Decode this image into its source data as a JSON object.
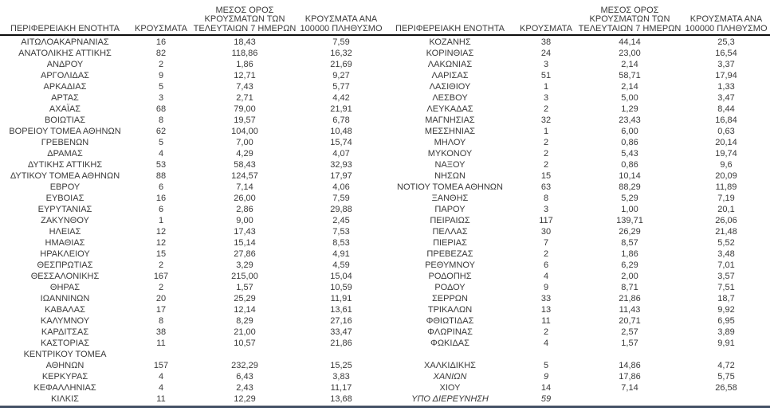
{
  "table": {
    "headers": {
      "region": "ΠΕΡΙΦΕΡΕΙΑΚΗ ΕΝΟΤΗΤΑ",
      "cases": "ΚΡΟΥΣΜΑΤΑ",
      "avg7_lines": [
        "ΜΕΣΟΣ ΟΡΟΣ",
        "ΚΡΟΥΣΜΑΤΩΝ ΤΩΝ",
        "ΤΕΛΕΥΤΑΙΩΝ 7 ΗΜΕΡΩΝ"
      ],
      "per100k_lines": [
        "ΚΡΟΥΣΜΑΤΑ ΑΝΑ",
        "100000 ΠΛΗΘΥΣΜΟ"
      ]
    },
    "left_rows": [
      {
        "region": "ΑΙΤΩΛΟΑΚΑΡΝΑΝΙΑΣ",
        "cases": "16",
        "avg7": "18,43",
        "per100k": "7,59"
      },
      {
        "region": "ΑΝΑΤΟΛΙΚΗΣ ΑΤΤΙΚΗΣ",
        "cases": "82",
        "avg7": "118,86",
        "per100k": "16,32"
      },
      {
        "region": "ΑΝΔΡΟΥ",
        "cases": "2",
        "avg7": "1,86",
        "per100k": "21,69"
      },
      {
        "region": "ΑΡΓΟΛΙΔΑΣ",
        "cases": "9",
        "avg7": "12,71",
        "per100k": "9,27"
      },
      {
        "region": "ΑΡΚΑΔΙΑΣ",
        "cases": "5",
        "avg7": "7,43",
        "per100k": "5,77"
      },
      {
        "region": "ΑΡΤΑΣ",
        "cases": "3",
        "avg7": "2,71",
        "per100k": "4,42"
      },
      {
        "region": "ΑΧΑΪΑΣ",
        "cases": "68",
        "avg7": "79,00",
        "per100k": "21,91"
      },
      {
        "region": "ΒΟΙΩΤΙΑΣ",
        "cases": "8",
        "avg7": "19,57",
        "per100k": "6,78"
      },
      {
        "region": "ΒΟΡΕΙΟΥ ΤΟΜΕΑ ΑΘΗΝΩΝ",
        "cases": "62",
        "avg7": "104,00",
        "per100k": "10,48"
      },
      {
        "region": "ΓΡΕΒΕΝΩΝ",
        "cases": "5",
        "avg7": "7,00",
        "per100k": "15,74"
      },
      {
        "region": "ΔΡΑΜΑΣ",
        "cases": "4",
        "avg7": "4,29",
        "per100k": "4,07"
      },
      {
        "region": "ΔΥΤΙΚΗΣ ΑΤΤΙΚΗΣ",
        "cases": "53",
        "avg7": "58,43",
        "per100k": "32,93"
      },
      {
        "region": "ΔΥΤΙΚΟΥ ΤΟΜΕΑ ΑΘΗΝΩΝ",
        "cases": "88",
        "avg7": "124,57",
        "per100k": "17,97"
      },
      {
        "region": "ΕΒΡΟΥ",
        "cases": "6",
        "avg7": "7,14",
        "per100k": "4,06"
      },
      {
        "region": "ΕΥΒΟΙΑΣ",
        "cases": "16",
        "avg7": "26,00",
        "per100k": "7,59"
      },
      {
        "region": "ΕΥΡΥΤΑΝΙΑΣ",
        "cases": "6",
        "avg7": "2,86",
        "per100k": "29,88"
      },
      {
        "region": "ΖΑΚΥΝΘΟΥ",
        "cases": "1",
        "avg7": "9,00",
        "per100k": "2,45"
      },
      {
        "region": "ΗΛΕΙΑΣ",
        "cases": "12",
        "avg7": "17,43",
        "per100k": "7,53"
      },
      {
        "region": "ΗΜΑΘΙΑΣ",
        "cases": "12",
        "avg7": "15,14",
        "per100k": "8,53"
      },
      {
        "region": "ΗΡΑΚΛΕΙΟΥ",
        "cases": "15",
        "avg7": "27,86",
        "per100k": "4,91"
      },
      {
        "region": "ΘΕΣΠΡΩΤΙΑΣ",
        "cases": "2",
        "avg7": "3,29",
        "per100k": "4,59"
      },
      {
        "region": "ΘΕΣΣΑΛΟΝΙΚΗΣ",
        "cases": "167",
        "avg7": "215,00",
        "per100k": "15,04"
      },
      {
        "region": "ΘΗΡΑΣ",
        "cases": "2",
        "avg7": "1,57",
        "per100k": "10,59"
      },
      {
        "region": "ΙΩΑΝΝΙΝΩΝ",
        "cases": "20",
        "avg7": "25,29",
        "per100k": "11,91"
      },
      {
        "region": "ΚΑΒΑΛΑΣ",
        "cases": "17",
        "avg7": "12,14",
        "per100k": "13,61"
      },
      {
        "region": "ΚΑΛΥΜΝΟΥ",
        "cases": "8",
        "avg7": "8,29",
        "per100k": "27,16"
      },
      {
        "region": "ΚΑΡΔΙΤΣΑΣ",
        "cases": "38",
        "avg7": "21,00",
        "per100k": "33,47"
      },
      {
        "region": "ΚΑΣΤΟΡΙΑΣ",
        "cases": "11",
        "avg7": "10,57",
        "per100k": "21,86"
      },
      {
        "region": "ΚΕΝΤΡΙΚΟΥ ΤΟΜΕΑ",
        "cases": "",
        "avg7": "",
        "per100k": ""
      },
      {
        "region": "ΑΘΗΝΩΝ",
        "cases": "157",
        "avg7": "232,29",
        "per100k": "15,25"
      },
      {
        "region": "ΚΕΡΚΥΡΑΣ",
        "cases": "4",
        "avg7": "6,43",
        "per100k": "3,83"
      },
      {
        "region": "ΚΕΦΑΛΛΗΝΙΑΣ",
        "cases": "4",
        "avg7": "2,43",
        "per100k": "11,17"
      },
      {
        "region": "ΚΙΛΚΙΣ",
        "cases": "11",
        "avg7": "12,29",
        "per100k": "13,68"
      }
    ],
    "right_rows": [
      {
        "region": "ΚΟΖΑΝΗΣ",
        "cases": "38",
        "avg7": "44,14",
        "per100k": "25,3"
      },
      {
        "region": "ΚΟΡΙΝΘΙΑΣ",
        "cases": "24",
        "avg7": "23,00",
        "per100k": "16,54"
      },
      {
        "region": "ΛΑΚΩΝΙΑΣ",
        "cases": "3",
        "avg7": "2,14",
        "per100k": "3,37"
      },
      {
        "region": "ΛΑΡΙΣΑΣ",
        "cases": "51",
        "avg7": "58,71",
        "per100k": "17,94"
      },
      {
        "region": "ΛΑΣΙΘΙΟΥ",
        "cases": "1",
        "avg7": "2,14",
        "per100k": "1,33"
      },
      {
        "region": "ΛΕΣΒΟΥ",
        "cases": "3",
        "avg7": "5,00",
        "per100k": "3,47"
      },
      {
        "region": "ΛΕΥΚΑΔΑΣ",
        "cases": "2",
        "avg7": "1,29",
        "per100k": "8,44"
      },
      {
        "region": "ΜΑΓΝΗΣΙΑΣ",
        "cases": "32",
        "avg7": "23,43",
        "per100k": "16,84"
      },
      {
        "region": "ΜΕΣΣΗΝΙΑΣ",
        "cases": "1",
        "avg7": "6,00",
        "per100k": "0,63"
      },
      {
        "region": "ΜΗΛΟΥ",
        "cases": "2",
        "avg7": "0,86",
        "per100k": "20,14"
      },
      {
        "region": "ΜΥΚΟΝΟΥ",
        "cases": "2",
        "avg7": "5,43",
        "per100k": "19,74"
      },
      {
        "region": "ΝΑΞΟΥ",
        "cases": "2",
        "avg7": "0,86",
        "per100k": "9,6"
      },
      {
        "region": "ΝΗΣΩΝ",
        "cases": "15",
        "avg7": "10,14",
        "per100k": "20,09"
      },
      {
        "region": "ΝΟΤΙΟΥ ΤΟΜΕΑ ΑΘΗΝΩΝ",
        "cases": "63",
        "avg7": "88,29",
        "per100k": "11,89"
      },
      {
        "region": "ΞΑΝΘΗΣ",
        "cases": "8",
        "avg7": "5,29",
        "per100k": "7,19"
      },
      {
        "region": "ΠΑΡΟΥ",
        "cases": "3",
        "avg7": "1,00",
        "per100k": "20,1"
      },
      {
        "region": "ΠΕΙΡΑΙΩΣ",
        "cases": "117",
        "avg7": "139,71",
        "per100k": "26,06"
      },
      {
        "region": "ΠΕΛΛΑΣ",
        "cases": "30",
        "avg7": "26,29",
        "per100k": "21,48"
      },
      {
        "region": "ΠΙΕΡΙΑΣ",
        "cases": "7",
        "avg7": "8,57",
        "per100k": "5,52"
      },
      {
        "region": "ΠΡΕΒΕΖΑΣ",
        "cases": "2",
        "avg7": "1,86",
        "per100k": "3,48"
      },
      {
        "region": "ΡΕΘΥΜΝΟΥ",
        "cases": "6",
        "avg7": "6,29",
        "per100k": "7,01"
      },
      {
        "region": "ΡΟΔΟΠΗΣ",
        "cases": "4",
        "avg7": "2,00",
        "per100k": "3,57"
      },
      {
        "region": "ΡΟΔΟΥ",
        "cases": "9",
        "avg7": "8,71",
        "per100k": "7,51"
      },
      {
        "region": "ΣΕΡΡΩΝ",
        "cases": "33",
        "avg7": "21,86",
        "per100k": "18,7"
      },
      {
        "region": "ΤΡΙΚΑΛΩΝ",
        "cases": "13",
        "avg7": "11,43",
        "per100k": "9,92"
      },
      {
        "region": "ΦΘΙΩΤΙΔΑΣ",
        "cases": "11",
        "avg7": "20,71",
        "per100k": "6,95"
      },
      {
        "region": "ΦΛΩΡΙΝΑΣ",
        "cases": "2",
        "avg7": "2,57",
        "per100k": "3,89"
      },
      {
        "region": "ΦΩΚΙΔΑΣ",
        "cases": "4",
        "avg7": "1,57",
        "per100k": "9,91"
      },
      {
        "region": "",
        "cases": "",
        "avg7": "",
        "per100k": ""
      },
      {
        "region": "ΧΑΛΚΙΔΙΚΗΣ",
        "cases": "5",
        "avg7": "14,86",
        "per100k": "4,72"
      },
      {
        "region": "ΧΑΝΙΩΝ",
        "cases": "9",
        "avg7": "17,86",
        "per100k": "5,75",
        "italic": true
      },
      {
        "region": "ΧΙΟΥ",
        "cases": "14",
        "avg7": "7,14",
        "per100k": "26,58"
      },
      {
        "region": "ΥΠΟ ΔΙΕΡΕΥΝΗΣΗ",
        "cases": "59",
        "avg7": "",
        "per100k": "",
        "italic": true
      }
    ]
  }
}
